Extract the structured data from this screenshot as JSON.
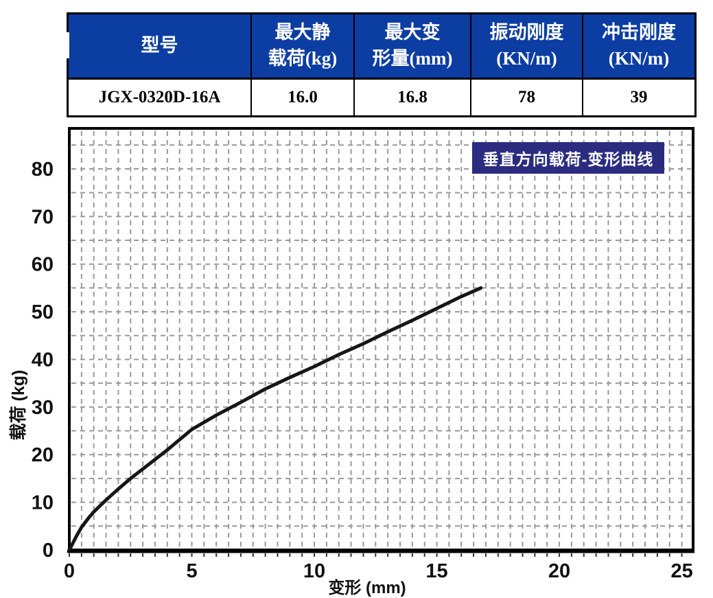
{
  "table": {
    "header_bg": "#0c3da2",
    "header_text_color": "#ffffff",
    "columns": [
      {
        "header_lines": [
          "型号"
        ],
        "value": "JGX-0320D-16A"
      },
      {
        "header_lines": [
          "最大静",
          "载荷(kg)"
        ],
        "value": "16.0"
      },
      {
        "header_lines": [
          "最大变",
          "形量(mm)"
        ],
        "value": "16.8"
      },
      {
        "header_lines": [
          "振动刚度",
          "(KN/m)"
        ],
        "value": "78"
      },
      {
        "header_lines": [
          "冲击刚度",
          "(KN/m)"
        ],
        "value": "39"
      }
    ]
  },
  "chart_data": {
    "type": "line",
    "title": "垂直方向载荷-变形曲线",
    "title_bg": "#2b2c80",
    "xlabel": "变形 (mm)",
    "ylabel": "载荷 (kg)",
    "xlim": [
      0,
      25.46
    ],
    "ylim": [
      0,
      88.5
    ],
    "xticks": [
      0,
      5,
      10,
      15,
      20,
      25
    ],
    "yticks": [
      0,
      10,
      20,
      30,
      40,
      50,
      60,
      70,
      80
    ],
    "grid": {
      "x_step": 0.5,
      "y_step": 5,
      "color": "#999999",
      "dash": "7 6"
    },
    "legend_position": "none",
    "series": [
      {
        "name": "垂直方向载荷-变形曲线",
        "color": "#161616",
        "x": [
          0,
          0.15,
          0.3,
          0.5,
          0.8,
          1,
          1.5,
          2,
          2.5,
          3,
          4,
          5,
          6,
          7,
          8,
          9,
          10,
          11,
          12,
          13,
          14,
          15,
          16,
          16.8
        ],
        "y": [
          0,
          1.5,
          3,
          4.8,
          6.8,
          8,
          10.5,
          12.8,
          15,
          17,
          21,
          25.3,
          28.3,
          31,
          33.8,
          36.2,
          38.5,
          41,
          43.3,
          45.8,
          48.2,
          50.7,
          53.2,
          55
        ]
      }
    ]
  }
}
